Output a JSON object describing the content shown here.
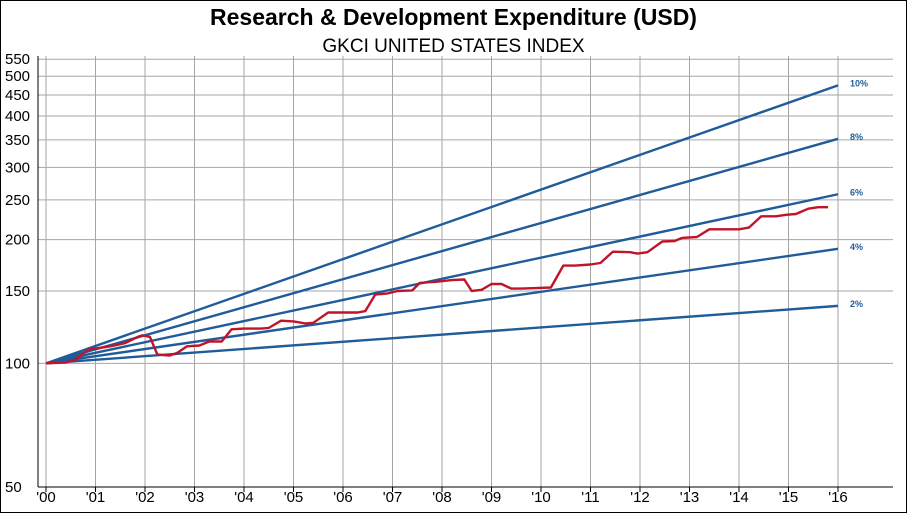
{
  "colors": {
    "reference_line": "#1f5c99",
    "index_line": "#c0142a",
    "grid": "#a6a6a6",
    "axis": "#000000",
    "background": "#ffffff"
  },
  "chart_data": {
    "type": "line",
    "title": "Research & Development Expenditure (USD)",
    "subtitle": "GKCI UNITED STATES INDEX",
    "xlabel": "",
    "ylabel": "",
    "y_scale": "log",
    "ylim": [
      50,
      560
    ],
    "xlim": [
      2000,
      2016.3
    ],
    "grid": true,
    "legend": "none",
    "y_ticks": [
      {
        "value": 50,
        "label": "50"
      },
      {
        "value": 100,
        "label": "100"
      },
      {
        "value": 150,
        "label": "150"
      },
      {
        "value": 200,
        "label": "200"
      },
      {
        "value": 250,
        "label": "250"
      },
      {
        "value": 300,
        "label": "300"
      },
      {
        "value": 350,
        "label": "350"
      },
      {
        "value": 400,
        "label": "400"
      },
      {
        "value": 450,
        "label": "450"
      },
      {
        "value": 500,
        "label": "500"
      },
      {
        "value": 550,
        "label": "550"
      }
    ],
    "x_ticks": [
      {
        "value": 2000,
        "label": "'00"
      },
      {
        "value": 2001,
        "label": "'01"
      },
      {
        "value": 2002,
        "label": "'02"
      },
      {
        "value": 2003,
        "label": "'03"
      },
      {
        "value": 2004,
        "label": "'04"
      },
      {
        "value": 2005,
        "label": "'05"
      },
      {
        "value": 2006,
        "label": "'06"
      },
      {
        "value": 2007,
        "label": "'07"
      },
      {
        "value": 2008,
        "label": "'08"
      },
      {
        "value": 2009,
        "label": "'09"
      },
      {
        "value": 2010,
        "label": "'10"
      },
      {
        "value": 2011,
        "label": "'11"
      },
      {
        "value": 2012,
        "label": "'12"
      },
      {
        "value": 2013,
        "label": "'13"
      },
      {
        "value": 2014,
        "label": "'14"
      },
      {
        "value": 2015,
        "label": "'15"
      },
      {
        "value": 2016,
        "label": "'16"
      }
    ],
    "reference_lines": [
      {
        "label": "10%",
        "start": [
          2000,
          100
        ],
        "end": [
          2016,
          475
        ]
      },
      {
        "label": "8%",
        "start": [
          2000,
          100
        ],
        "end": [
          2016,
          352
        ]
      },
      {
        "label": "6%",
        "start": [
          2000,
          100
        ],
        "end": [
          2016,
          258
        ]
      },
      {
        "label": "4%",
        "start": [
          2000,
          100
        ],
        "end": [
          2016,
          190
        ]
      },
      {
        "label": "2%",
        "start": [
          2000,
          100
        ],
        "end": [
          2016,
          138
        ]
      }
    ],
    "series": [
      {
        "points": [
          [
            2000.0,
            100
          ],
          [
            2000.4,
            100.5
          ],
          [
            2000.6,
            102
          ],
          [
            2000.85,
            108
          ],
          [
            2001.3,
            110
          ],
          [
            2001.6,
            112
          ],
          [
            2001.85,
            116
          ],
          [
            2001.95,
            117
          ],
          [
            2002.1,
            116
          ],
          [
            2002.25,
            105
          ],
          [
            2002.5,
            104.5
          ],
          [
            2002.65,
            106
          ],
          [
            2002.85,
            110
          ],
          [
            2003.1,
            110.5
          ],
          [
            2003.3,
            113
          ],
          [
            2003.55,
            113
          ],
          [
            2003.75,
            121
          ],
          [
            2004.0,
            121.5
          ],
          [
            2004.35,
            121.5
          ],
          [
            2004.5,
            122
          ],
          [
            2004.75,
            127
          ],
          [
            2005.0,
            126.5
          ],
          [
            2005.25,
            125
          ],
          [
            2005.4,
            125.5
          ],
          [
            2005.7,
            133
          ],
          [
            2006.0,
            133
          ],
          [
            2006.3,
            133
          ],
          [
            2006.45,
            134
          ],
          [
            2006.65,
            147
          ],
          [
            2006.9,
            148
          ],
          [
            2007.1,
            150
          ],
          [
            2007.4,
            150.5
          ],
          [
            2007.55,
            157
          ],
          [
            2007.9,
            158
          ],
          [
            2008.2,
            159.5
          ],
          [
            2008.45,
            160
          ],
          [
            2008.6,
            150
          ],
          [
            2008.8,
            151
          ],
          [
            2009.0,
            156
          ],
          [
            2009.2,
            156
          ],
          [
            2009.4,
            152
          ],
          [
            2009.6,
            152
          ],
          [
            2009.9,
            152.5
          ],
          [
            2010.2,
            153
          ],
          [
            2010.45,
            173
          ],
          [
            2010.7,
            173
          ],
          [
            2011.0,
            174
          ],
          [
            2011.2,
            175.5
          ],
          [
            2011.45,
            187
          ],
          [
            2011.8,
            186.5
          ],
          [
            2011.95,
            185
          ],
          [
            2012.15,
            186.5
          ],
          [
            2012.45,
            198
          ],
          [
            2012.7,
            198.5
          ],
          [
            2012.85,
            202
          ],
          [
            2013.15,
            203
          ],
          [
            2013.4,
            212
          ],
          [
            2013.7,
            212
          ],
          [
            2014.0,
            212
          ],
          [
            2014.2,
            214
          ],
          [
            2014.45,
            228
          ],
          [
            2014.75,
            228
          ],
          [
            2014.95,
            230
          ],
          [
            2015.15,
            231
          ],
          [
            2015.4,
            238
          ],
          [
            2015.6,
            240
          ],
          [
            2015.8,
            240
          ]
        ]
      }
    ]
  }
}
